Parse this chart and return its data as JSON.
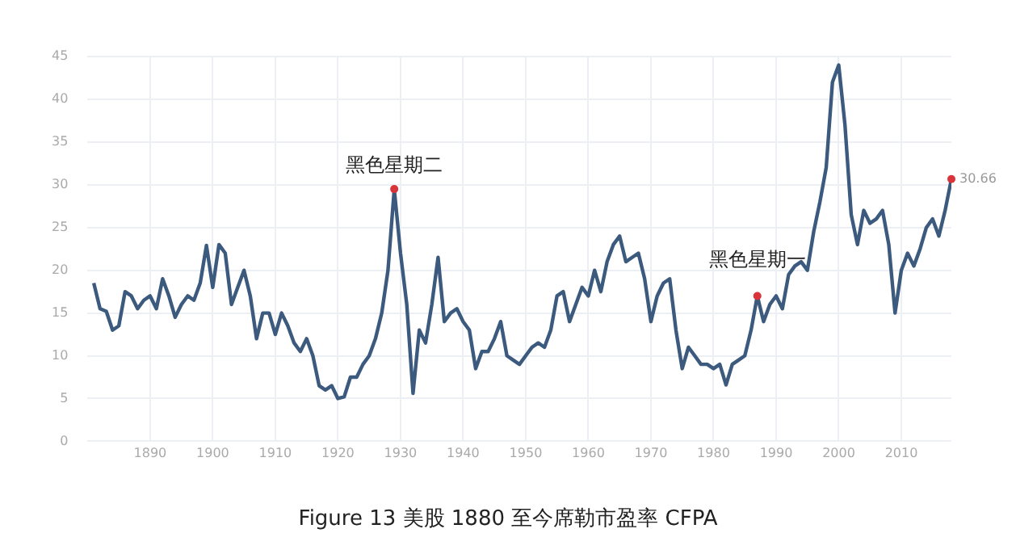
{
  "chart_data": {
    "type": "line",
    "title": "Figure 13  美股 1880 至今席勒市盈率 CFPA",
    "x": [
      1881,
      1882,
      1883,
      1884,
      1885,
      1886,
      1887,
      1888,
      1889,
      1890,
      1891,
      1892,
      1893,
      1894,
      1895,
      1896,
      1897,
      1898,
      1899,
      1900,
      1901,
      1902,
      1903,
      1904,
      1905,
      1906,
      1907,
      1908,
      1909,
      1910,
      1911,
      1912,
      1913,
      1914,
      1915,
      1916,
      1917,
      1918,
      1919,
      1920,
      1921,
      1922,
      1923,
      1924,
      1925,
      1926,
      1927,
      1928,
      1929,
      1930,
      1931,
      1932,
      1933,
      1934,
      1935,
      1936,
      1937,
      1938,
      1939,
      1940,
      1941,
      1942,
      1943,
      1944,
      1945,
      1946,
      1947,
      1948,
      1949,
      1950,
      1951,
      1952,
      1953,
      1954,
      1955,
      1956,
      1957,
      1958,
      1959,
      1960,
      1961,
      1962,
      1963,
      1964,
      1965,
      1966,
      1967,
      1968,
      1969,
      1970,
      1971,
      1972,
      1973,
      1974,
      1975,
      1976,
      1977,
      1978,
      1979,
      1980,
      1981,
      1982,
      1983,
      1984,
      1985,
      1986,
      1987,
      1988,
      1989,
      1990,
      1991,
      1992,
      1993,
      1994,
      1995,
      1996,
      1997,
      1998,
      1999,
      2000,
      2001,
      2002,
      2003,
      2004,
      2005,
      2006,
      2007,
      2008,
      2009,
      2010,
      2011,
      2012,
      2013,
      2014,
      2015,
      2016,
      2017,
      2018
    ],
    "series": [
      {
        "color": "#3b5a7e",
        "values": [
          18.5,
          15.5,
          15.2,
          13,
          13.5,
          17.5,
          17,
          15.5,
          16.5,
          17,
          15.5,
          19,
          17,
          14.5,
          16,
          17,
          16.5,
          18.5,
          22.9,
          18,
          23,
          22,
          16,
          18,
          20,
          17,
          12,
          15,
          15,
          12.5,
          15,
          13.5,
          11.5,
          10.5,
          12,
          10,
          6.5,
          6,
          6.5,
          5,
          5.2,
          7.5,
          7.5,
          9,
          10,
          12,
          15,
          20,
          29.5,
          22,
          16,
          5.6,
          13,
          11.5,
          16,
          21.5,
          14,
          15,
          15.5,
          14,
          13,
          8.5,
          10.5,
          10.5,
          12,
          14,
          10,
          9.5,
          9,
          10,
          11,
          11.5,
          11,
          13,
          17,
          17.5,
          14,
          16,
          18,
          17,
          20,
          17.5,
          21,
          23,
          24,
          21,
          21.5,
          22,
          19,
          14,
          17,
          18.5,
          19,
          13,
          8.5,
          11,
          10,
          9,
          9,
          8.5,
          9,
          6.6,
          9,
          9.5,
          10,
          13,
          17,
          14,
          16,
          17,
          15.5,
          19.5,
          20.5,
          21,
          20,
          24.5,
          28,
          32,
          42,
          44,
          37,
          26.5,
          23,
          27,
          25.5,
          26,
          27,
          23,
          15,
          20,
          22,
          20.5,
          22.5,
          25,
          26,
          24,
          27,
          30.66
        ]
      }
    ],
    "xlim": [
      1880,
      2018
    ],
    "xticks": [
      1890,
      1900,
      1910,
      1920,
      1930,
      1940,
      1950,
      1960,
      1970,
      1980,
      1990,
      2000,
      2010
    ],
    "ylim": [
      0,
      45
    ],
    "yticks": [
      0,
      5,
      10,
      15,
      20,
      25,
      30,
      35,
      40,
      45
    ],
    "grid": true,
    "legend": false,
    "marker": "none",
    "line_style": "solid",
    "annotations": [
      {
        "text": "黑色星期二",
        "x": 1929,
        "y": 29.5
      },
      {
        "text": "黑色星期一",
        "x": 1987,
        "y": 17
      },
      {
        "text": "30.66",
        "x": 2018,
        "y": 30.66
      }
    ]
  }
}
